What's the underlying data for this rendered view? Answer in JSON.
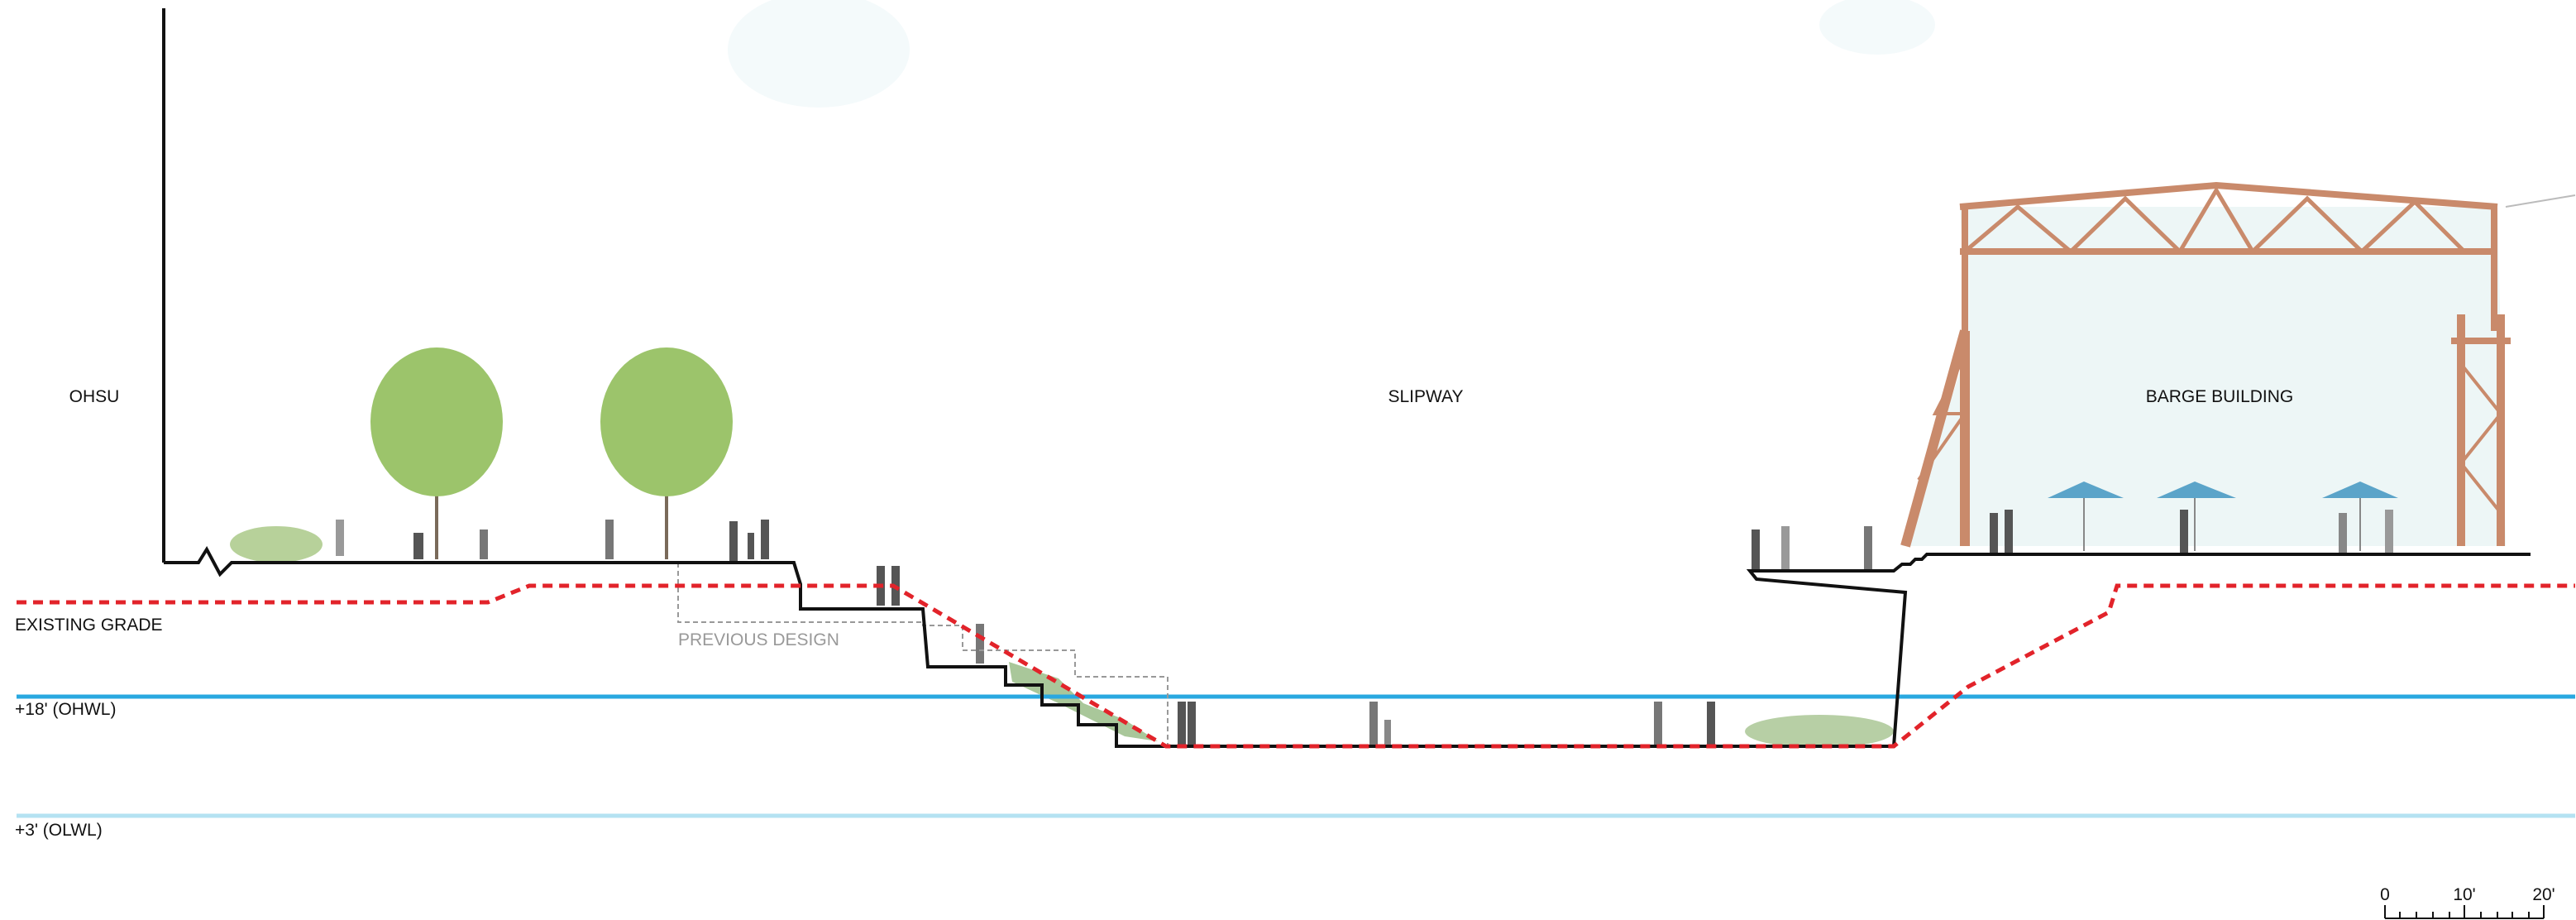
{
  "labels": {
    "ohsu": "OHSU",
    "slipway": "SLIPWAY",
    "barge_building": "BARGE BUILDING",
    "existing_grade": "EXISTING GRADE",
    "previous_design": "PREVIOUS DESIGN",
    "ohwl": "+18' (OHWL)",
    "olwl": "+3' (OLWL)"
  },
  "scale_bar": {
    "labels": [
      "0",
      "10'",
      "20'"
    ]
  }
}
